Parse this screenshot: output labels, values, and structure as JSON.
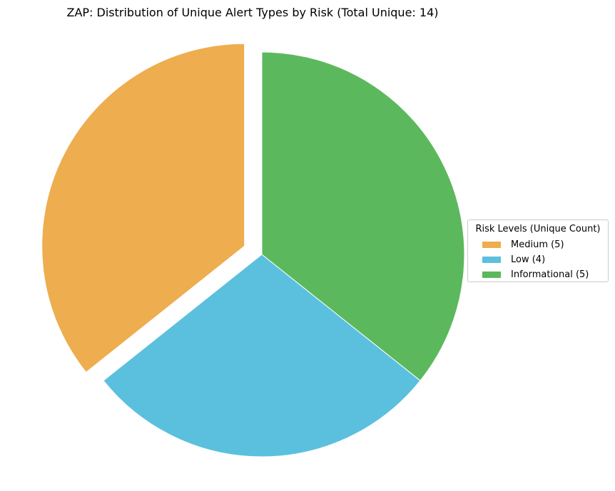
{
  "chart_data": {
    "type": "pie",
    "title": "ZAP: Distribution of Unique Alert Types by Risk (Total Unique: 14)",
    "slices": [
      {
        "label": "Medium (5)",
        "value": 5,
        "color": "#EEAD4E",
        "exploded": true
      },
      {
        "label": "Low (4)",
        "value": 4,
        "color": "#5BC0DE",
        "exploded": false
      },
      {
        "label": "Informational (5)",
        "value": 5,
        "color": "#5CB85C",
        "exploded": false
      }
    ],
    "legend": {
      "title": "Risk Levels (Unique Count)",
      "placement": "right"
    }
  }
}
